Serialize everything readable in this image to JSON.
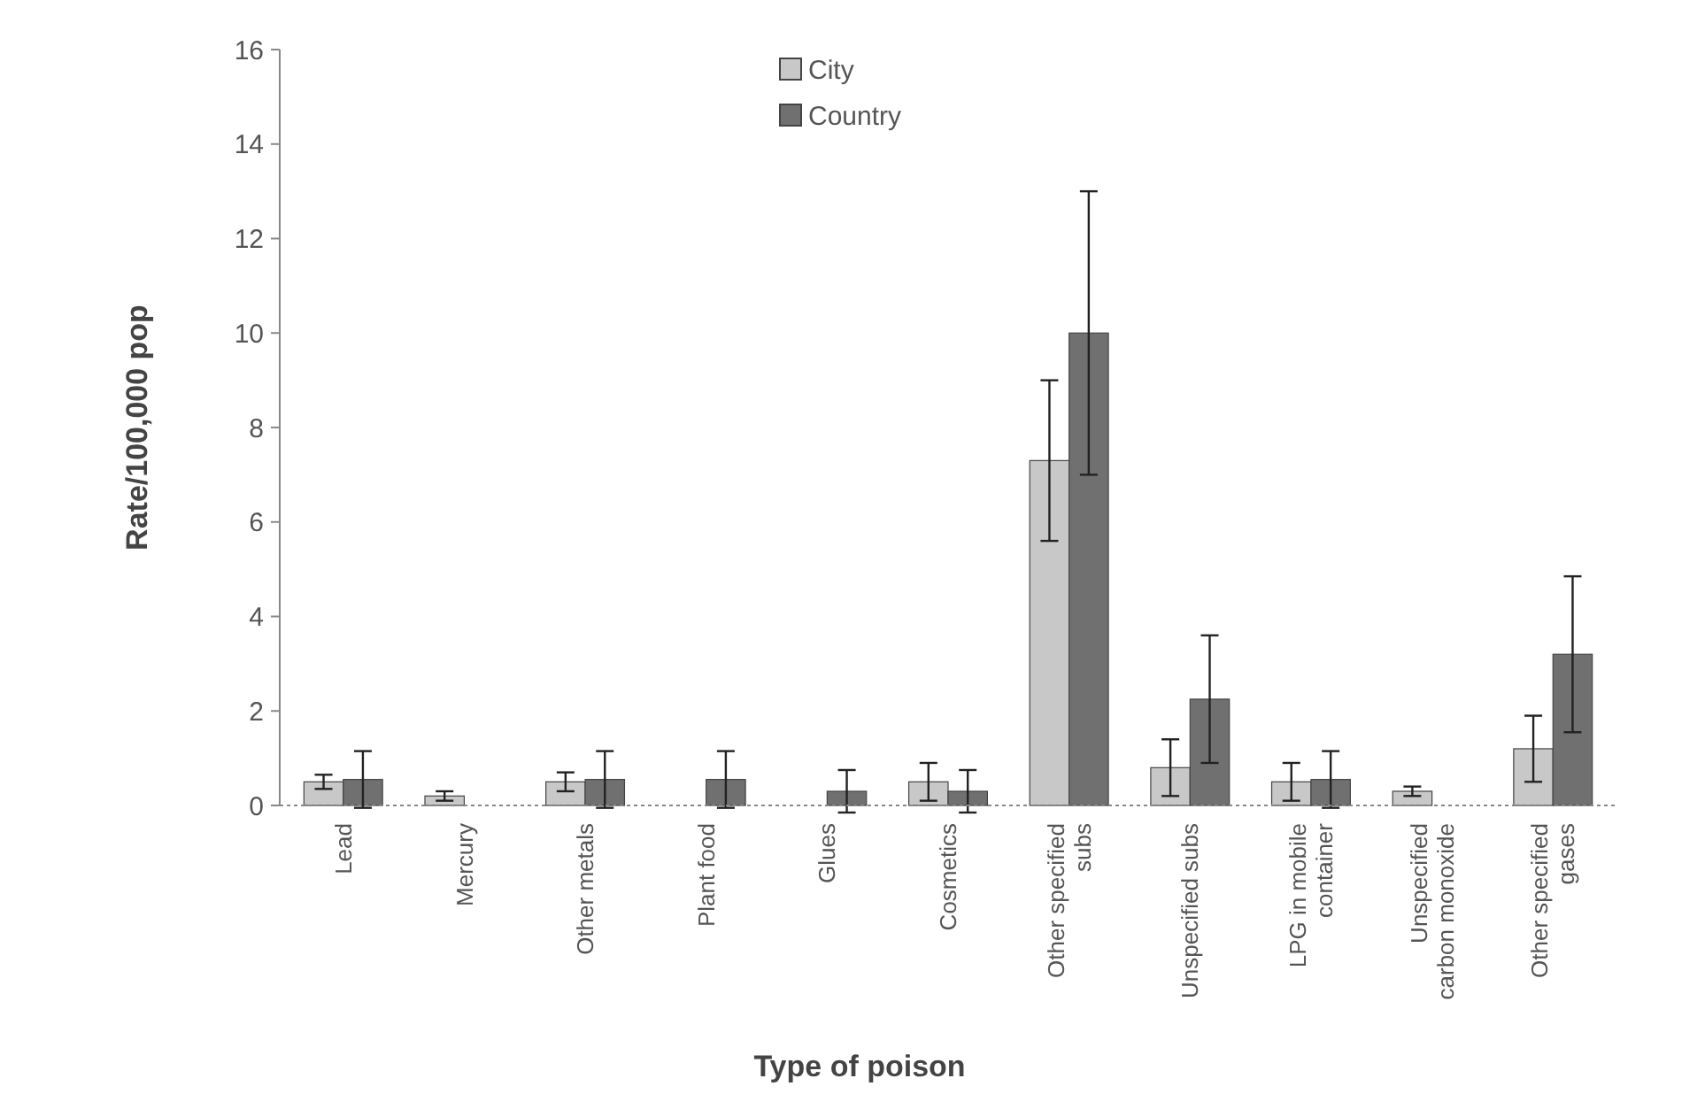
{
  "chart_data": {
    "type": "bar",
    "xlabel": "Type of poison",
    "ylabel": "Rate/100,000 pop",
    "categories": [
      "Lead",
      "Mercury",
      "Other metals",
      "Plant food",
      "Glues",
      "Cosmetics",
      "Other specified subs",
      "Unspecified subs",
      "LPG in mobile container",
      "Unspecified carbon monoxide",
      "Other specified gases"
    ],
    "series": [
      {
        "name": "City",
        "color": "#c8c8c8",
        "values": [
          0.5,
          0.2,
          0.5,
          0,
          0,
          0.5,
          7.3,
          0.8,
          0.5,
          0.3,
          1.2
        ],
        "errors": [
          0.15,
          0.1,
          0.2,
          null,
          null,
          0.4,
          1.7,
          0.6,
          0.4,
          0.1,
          0.7
        ]
      },
      {
        "name": "Country",
        "color": "#707070",
        "values": [
          0.55,
          0,
          0.55,
          0.55,
          0.3,
          0.3,
          10,
          2.25,
          0.55,
          0,
          3.2
        ],
        "errors": [
          0.6,
          null,
          0.6,
          0.6,
          0.45,
          0.45,
          3,
          1.35,
          0.6,
          null,
          1.65
        ]
      }
    ],
    "ylim": [
      0,
      16
    ],
    "yticks": [
      0,
      2,
      4,
      6,
      8,
      10,
      12,
      14,
      16
    ],
    "grid": false,
    "legend": "top"
  }
}
